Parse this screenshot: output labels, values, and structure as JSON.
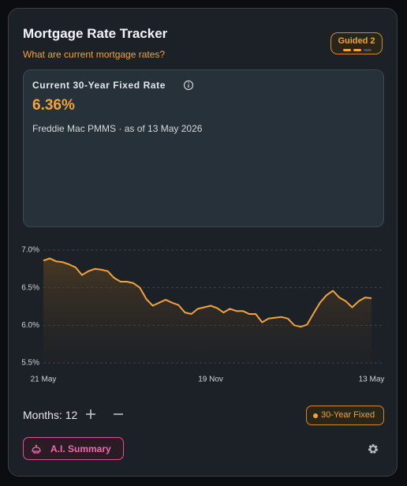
{
  "header": {
    "title": "Mortgage Rate Tracker",
    "subtitle": "What are current mortgage rates?",
    "badge": "Guided 2"
  },
  "rate_panel": {
    "label": "Current 30-Year Fixed Rate",
    "rate": "6.36%",
    "source": "Freddie Mac PMMS · as of 13 May 2026"
  },
  "chart_data": {
    "type": "line",
    "categories": [
      "21 May",
      null,
      null,
      null,
      null,
      null,
      null,
      null,
      null,
      null,
      null,
      null,
      null,
      null,
      null,
      null,
      null,
      null,
      null,
      null,
      null,
      null,
      null,
      null,
      null,
      null,
      "19 Nov",
      null,
      null,
      null,
      null,
      null,
      null,
      null,
      null,
      null,
      null,
      null,
      null,
      null,
      null,
      null,
      null,
      null,
      null,
      null,
      null,
      null,
      null,
      null,
      null,
      "13 May"
    ],
    "series": [
      {
        "name": "30-Year Fixed",
        "color": "#f2a33a",
        "values": [
          6.86,
          6.89,
          6.85,
          6.84,
          6.81,
          6.77,
          6.67,
          6.72,
          6.75,
          6.74,
          6.72,
          6.63,
          6.58,
          6.58,
          6.56,
          6.5,
          6.35,
          6.26,
          6.3,
          6.34,
          6.3,
          6.27,
          6.17,
          6.15,
          6.22,
          6.24,
          6.26,
          6.23,
          6.17,
          6.22,
          6.19,
          6.19,
          6.15,
          6.15,
          6.04,
          6.09,
          6.1,
          6.11,
          6.09,
          6.0,
          5.98,
          6.01,
          6.16,
          6.3,
          6.4,
          6.46,
          6.37,
          6.32,
          6.24,
          6.32,
          6.37,
          6.36
        ]
      }
    ],
    "ylim": [
      5.5,
      7.0
    ],
    "yticks": [
      {
        "value": 7.0,
        "label": "7.0%"
      },
      {
        "value": 6.5,
        "label": "6.5%"
      },
      {
        "value": 6.0,
        "label": "6.0%"
      },
      {
        "value": 5.5,
        "label": "5.5%"
      }
    ],
    "grid": true
  },
  "controls": {
    "months_label": "Months:",
    "months": 12,
    "summary_button": "A.I. Summary"
  }
}
